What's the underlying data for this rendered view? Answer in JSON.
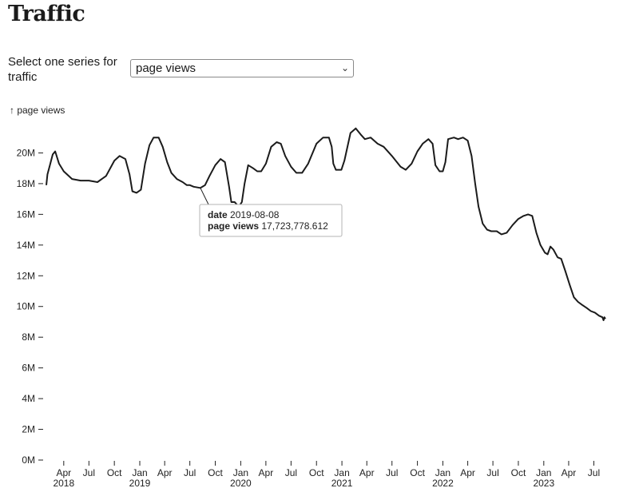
{
  "page": {
    "title": "Traffic"
  },
  "control": {
    "label": "Select one series for traffic",
    "selected": "page views"
  },
  "chart_data": {
    "type": "line",
    "ylabel": "↑ page views",
    "ylim": [
      0,
      22000000
    ],
    "y_ticks": [
      "0M",
      "2M",
      "4M",
      "6M",
      "8M",
      "10M",
      "12M",
      "14M",
      "16M",
      "18M",
      "20M"
    ],
    "x_range": [
      "2018-01-28",
      "2023-08-12"
    ],
    "x_ticks": [
      {
        "date": "2018-04-01",
        "label": "Apr",
        "year": "2018"
      },
      {
        "date": "2018-07-01",
        "label": "Jul"
      },
      {
        "date": "2018-10-01",
        "label": "Oct"
      },
      {
        "date": "2019-01-01",
        "label": "Jan",
        "year": "2019"
      },
      {
        "date": "2019-04-01",
        "label": "Apr"
      },
      {
        "date": "2019-07-01",
        "label": "Jul"
      },
      {
        "date": "2019-10-01",
        "label": "Oct"
      },
      {
        "date": "2020-01-01",
        "label": "Jan",
        "year": "2020"
      },
      {
        "date": "2020-04-01",
        "label": "Apr"
      },
      {
        "date": "2020-07-01",
        "label": "Jul"
      },
      {
        "date": "2020-10-01",
        "label": "Oct"
      },
      {
        "date": "2021-01-01",
        "label": "Jan",
        "year": "2021"
      },
      {
        "date": "2021-04-01",
        "label": "Apr"
      },
      {
        "date": "2021-07-01",
        "label": "Jul"
      },
      {
        "date": "2021-10-01",
        "label": "Oct"
      },
      {
        "date": "2022-01-01",
        "label": "Jan",
        "year": "2022"
      },
      {
        "date": "2022-04-01",
        "label": "Apr"
      },
      {
        "date": "2022-07-01",
        "label": "Jul"
      },
      {
        "date": "2022-10-01",
        "label": "Oct"
      },
      {
        "date": "2023-01-01",
        "label": "Jan",
        "year": "2023"
      },
      {
        "date": "2023-04-01",
        "label": "Apr"
      },
      {
        "date": "2023-07-01",
        "label": "Jul"
      }
    ],
    "series": [
      {
        "points": [
          [
            "2018-01-28",
            17.9
          ],
          [
            "2018-02-01",
            18.6
          ],
          [
            "2018-02-10",
            19.2
          ],
          [
            "2018-02-20",
            19.9
          ],
          [
            "2018-03-01",
            20.1
          ],
          [
            "2018-03-15",
            19.3
          ],
          [
            "2018-04-01",
            18.8
          ],
          [
            "2018-05-01",
            18.3
          ],
          [
            "2018-06-01",
            18.2
          ],
          [
            "2018-07-01",
            18.2
          ],
          [
            "2018-08-01",
            18.1
          ],
          [
            "2018-09-01",
            18.5
          ],
          [
            "2018-10-01",
            19.5
          ],
          [
            "2018-10-20",
            19.8
          ],
          [
            "2018-11-10",
            19.6
          ],
          [
            "2018-11-25",
            18.6
          ],
          [
            "2018-12-05",
            17.5
          ],
          [
            "2018-12-20",
            17.4
          ],
          [
            "2019-01-05",
            17.6
          ],
          [
            "2019-01-20",
            19.3
          ],
          [
            "2019-02-05",
            20.5
          ],
          [
            "2019-02-20",
            21.0
          ],
          [
            "2019-03-10",
            21.0
          ],
          [
            "2019-03-25",
            20.4
          ],
          [
            "2019-04-10",
            19.4
          ],
          [
            "2019-04-25",
            18.7
          ],
          [
            "2019-05-15",
            18.3
          ],
          [
            "2019-06-05",
            18.1
          ],
          [
            "2019-06-20",
            17.9
          ],
          [
            "2019-07-01",
            17.9
          ],
          [
            "2019-07-15",
            17.8
          ],
          [
            "2019-08-08",
            17.72
          ],
          [
            "2019-08-25",
            17.9
          ],
          [
            "2019-09-10",
            18.5
          ],
          [
            "2019-10-01",
            19.2
          ],
          [
            "2019-10-20",
            19.6
          ],
          [
            "2019-11-05",
            19.4
          ],
          [
            "2019-11-20",
            17.8
          ],
          [
            "2019-11-28",
            16.8
          ],
          [
            "2019-12-10",
            16.8
          ],
          [
            "2019-12-25",
            16.5
          ],
          [
            "2020-01-05",
            16.8
          ],
          [
            "2020-01-15",
            18.0
          ],
          [
            "2020-01-28",
            19.2
          ],
          [
            "2020-02-15",
            19.0
          ],
          [
            "2020-03-01",
            18.8
          ],
          [
            "2020-03-15",
            18.8
          ],
          [
            "2020-04-01",
            19.3
          ],
          [
            "2020-04-20",
            20.4
          ],
          [
            "2020-05-10",
            20.7
          ],
          [
            "2020-05-25",
            20.6
          ],
          [
            "2020-06-10",
            19.8
          ],
          [
            "2020-07-01",
            19.1
          ],
          [
            "2020-07-20",
            18.7
          ],
          [
            "2020-08-10",
            18.7
          ],
          [
            "2020-09-01",
            19.3
          ],
          [
            "2020-10-01",
            20.6
          ],
          [
            "2020-10-25",
            21.0
          ],
          [
            "2020-11-15",
            21.0
          ],
          [
            "2020-11-25",
            20.4
          ],
          [
            "2020-12-01",
            19.3
          ],
          [
            "2020-12-10",
            18.9
          ],
          [
            "2020-12-30",
            18.9
          ],
          [
            "2021-01-10",
            19.5
          ],
          [
            "2021-02-01",
            21.3
          ],
          [
            "2021-02-20",
            21.6
          ],
          [
            "2021-03-10",
            21.2
          ],
          [
            "2021-03-25",
            20.9
          ],
          [
            "2021-04-15",
            21.0
          ],
          [
            "2021-05-10",
            20.6
          ],
          [
            "2021-06-01",
            20.4
          ],
          [
            "2021-07-01",
            19.8
          ],
          [
            "2021-08-01",
            19.1
          ],
          [
            "2021-08-20",
            18.9
          ],
          [
            "2021-09-10",
            19.3
          ],
          [
            "2021-10-01",
            20.1
          ],
          [
            "2021-10-20",
            20.6
          ],
          [
            "2021-11-10",
            20.9
          ],
          [
            "2021-11-25",
            20.6
          ],
          [
            "2021-12-05",
            19.2
          ],
          [
            "2021-12-20",
            18.8
          ],
          [
            "2022-01-01",
            18.8
          ],
          [
            "2022-01-10",
            19.4
          ],
          [
            "2022-01-20",
            20.9
          ],
          [
            "2022-02-10",
            21.0
          ],
          [
            "2022-02-25",
            20.9
          ],
          [
            "2022-03-15",
            21.0
          ],
          [
            "2022-04-01",
            20.8
          ],
          [
            "2022-04-15",
            19.8
          ],
          [
            "2022-04-28",
            18.0
          ],
          [
            "2022-05-10",
            16.5
          ],
          [
            "2022-05-25",
            15.4
          ],
          [
            "2022-06-10",
            15.0
          ],
          [
            "2022-06-25",
            14.9
          ],
          [
            "2022-07-15",
            14.9
          ],
          [
            "2022-08-01",
            14.7
          ],
          [
            "2022-08-20",
            14.8
          ],
          [
            "2022-09-10",
            15.3
          ],
          [
            "2022-10-01",
            15.7
          ],
          [
            "2022-10-20",
            15.9
          ],
          [
            "2022-11-05",
            16.0
          ],
          [
            "2022-11-20",
            15.9
          ],
          [
            "2022-12-05",
            14.8
          ],
          [
            "2022-12-20",
            14.0
          ],
          [
            "2023-01-05",
            13.5
          ],
          [
            "2023-01-15",
            13.4
          ],
          [
            "2023-01-25",
            13.9
          ],
          [
            "2023-02-05",
            13.7
          ],
          [
            "2023-02-20",
            13.2
          ],
          [
            "2023-03-05",
            13.1
          ],
          [
            "2023-03-20",
            12.3
          ],
          [
            "2023-04-05",
            11.4
          ],
          [
            "2023-04-20",
            10.6
          ],
          [
            "2023-05-05",
            10.3
          ],
          [
            "2023-05-20",
            10.1
          ],
          [
            "2023-06-05",
            9.9
          ],
          [
            "2023-06-20",
            9.7
          ],
          [
            "2023-07-05",
            9.6
          ],
          [
            "2023-07-20",
            9.4
          ],
          [
            "2023-08-01",
            9.3
          ],
          [
            "2023-08-05",
            9.1
          ],
          [
            "2023-08-08",
            9.3
          ],
          [
            "2023-08-12",
            9.2
          ]
        ]
      }
    ],
    "tooltip": {
      "date_key": "date",
      "date_value": "2019-08-08",
      "value_key": "page views",
      "value_value": "17,723,778.612"
    }
  }
}
